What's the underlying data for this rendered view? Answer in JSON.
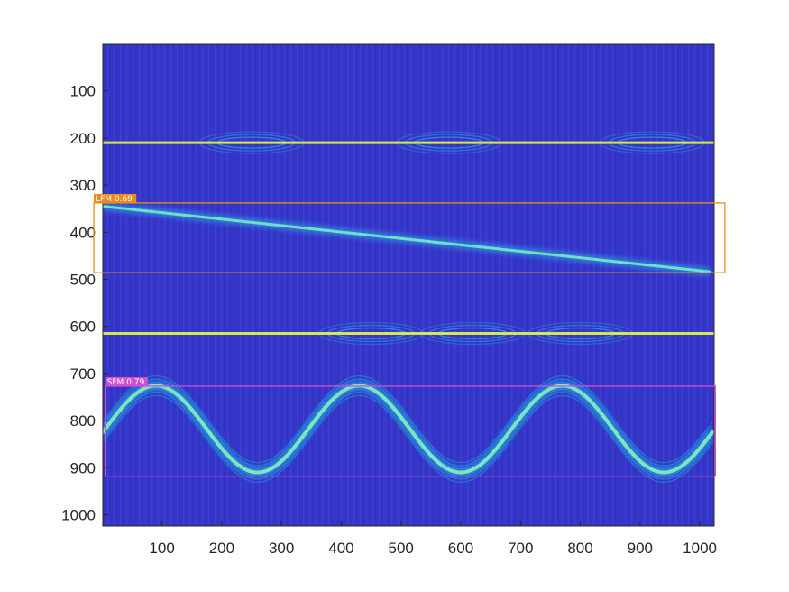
{
  "chart_data": {
    "type": "heatmap",
    "title": "",
    "xlabel": "",
    "ylabel": "",
    "xlim": [
      1,
      1024
    ],
    "ylim": [
      1024,
      1
    ],
    "y_reversed": true,
    "grid": false,
    "colormap": "parula-like (dark blue background, cyan/yellow ridges)",
    "background_color": "#3535c8",
    "x_ticks": [
      100,
      200,
      300,
      400,
      500,
      600,
      700,
      800,
      900,
      1000
    ],
    "y_ticks": [
      100,
      200,
      300,
      400,
      500,
      600,
      700,
      800,
      900,
      1000
    ],
    "x_tick_labels": [
      "100",
      "200",
      "300",
      "400",
      "500",
      "600",
      "700",
      "800",
      "900",
      "1000"
    ],
    "y_tick_labels": [
      "100",
      "200",
      "300",
      "400",
      "500",
      "600",
      "700",
      "800",
      "900",
      "1000"
    ],
    "ridges": [
      {
        "kind": "constant",
        "row": 210,
        "x": [
          1,
          1024
        ],
        "interference_x": [
          250,
          580,
          920
        ]
      },
      {
        "kind": "linear",
        "x": [
          1,
          1024
        ],
        "row": [
          345,
          485
        ]
      },
      {
        "kind": "constant",
        "row": 615,
        "x": [
          1,
          1024
        ],
        "interference_x": [
          450,
          620,
          800
        ]
      },
      {
        "kind": "sinusoid",
        "center_row": 818,
        "amplitude": 92,
        "period": 340,
        "crest_x": [
          90,
          430,
          770
        ],
        "trough_x": [
          260,
          600,
          940
        ]
      }
    ],
    "detections": [
      {
        "label": "LFM 0.69",
        "color": "#ee8a1c",
        "x": [
          -14,
          1042
        ],
        "y": [
          338,
          486
        ]
      },
      {
        "label": "SFM 0.79",
        "color": "#d24fd2",
        "x": [
          5,
          1026
        ],
        "y": [
          727,
          918
        ]
      }
    ]
  }
}
